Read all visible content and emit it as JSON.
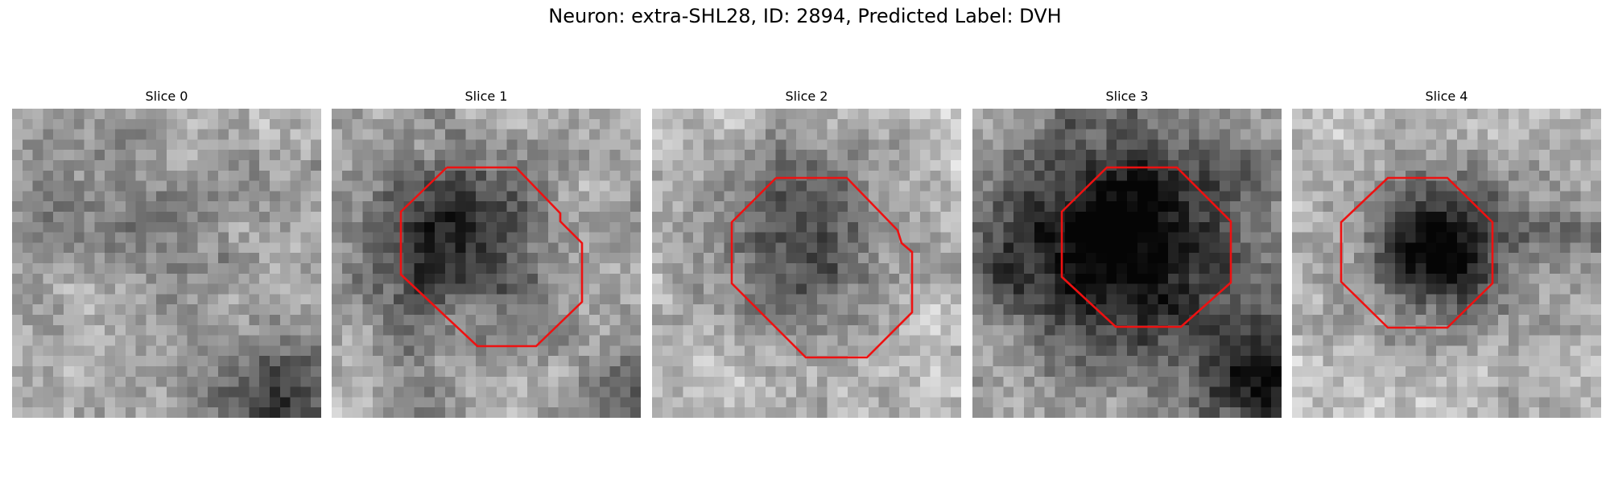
{
  "figure": {
    "title": "Neuron: extra-SHL28, ID: 2894, Predicted Label: DVH",
    "contour_color": "#ee1111",
    "colormap": "gray"
  },
  "panels": [
    {
      "title": "Slice 0",
      "has_contour": false
    },
    {
      "title": "Slice 1",
      "has_contour": true
    },
    {
      "title": "Slice 2",
      "has_contour": true
    },
    {
      "title": "Slice 3",
      "has_contour": true
    },
    {
      "title": "Slice 4",
      "has_contour": true
    }
  ]
}
